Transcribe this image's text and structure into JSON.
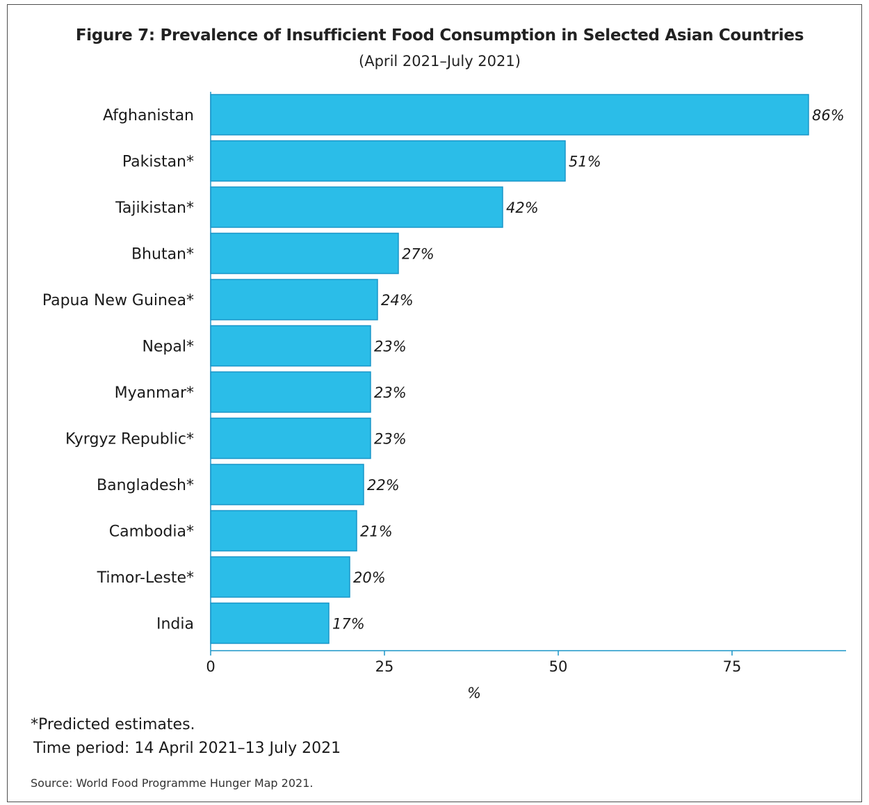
{
  "title": "Figure 7: Prevalence of Insufficient Food Consumption in Selected Asian Countries",
  "subtitle": "(April 2021–July 2021)",
  "notes": {
    "predicted": "*Predicted estimates.",
    "period": "Time period: 14 April 2021–13 July 2021",
    "source": "Source: World Food Programme Hunger Map 2021."
  },
  "colors": {
    "bar_fill": "#2bbde8",
    "bar_stroke": "#1a96c9",
    "axis": "#1a96c9"
  },
  "chart_data": {
    "type": "bar",
    "orientation": "horizontal",
    "categories": [
      "Afghanistan",
      "Pakistan*",
      "Tajikistan*",
      "Bhutan*",
      "Papua New Guinea*",
      "Nepal*",
      "Myanmar*",
      "Kyrgyz Republic*",
      "Bangladesh*",
      "Cambodia*",
      "Timor-Leste*",
      "India"
    ],
    "values": [
      86,
      51,
      42,
      27,
      24,
      23,
      23,
      23,
      22,
      21,
      20,
      17
    ],
    "value_labels": [
      "86%",
      "51%",
      "42%",
      "27%",
      "24%",
      "23%",
      "23%",
      "23%",
      "22%",
      "21%",
      "20%",
      "17%"
    ],
    "xlabel": "%",
    "xticks": [
      0,
      25,
      50,
      75
    ],
    "xlim": [
      0,
      100
    ],
    "grid": false
  }
}
